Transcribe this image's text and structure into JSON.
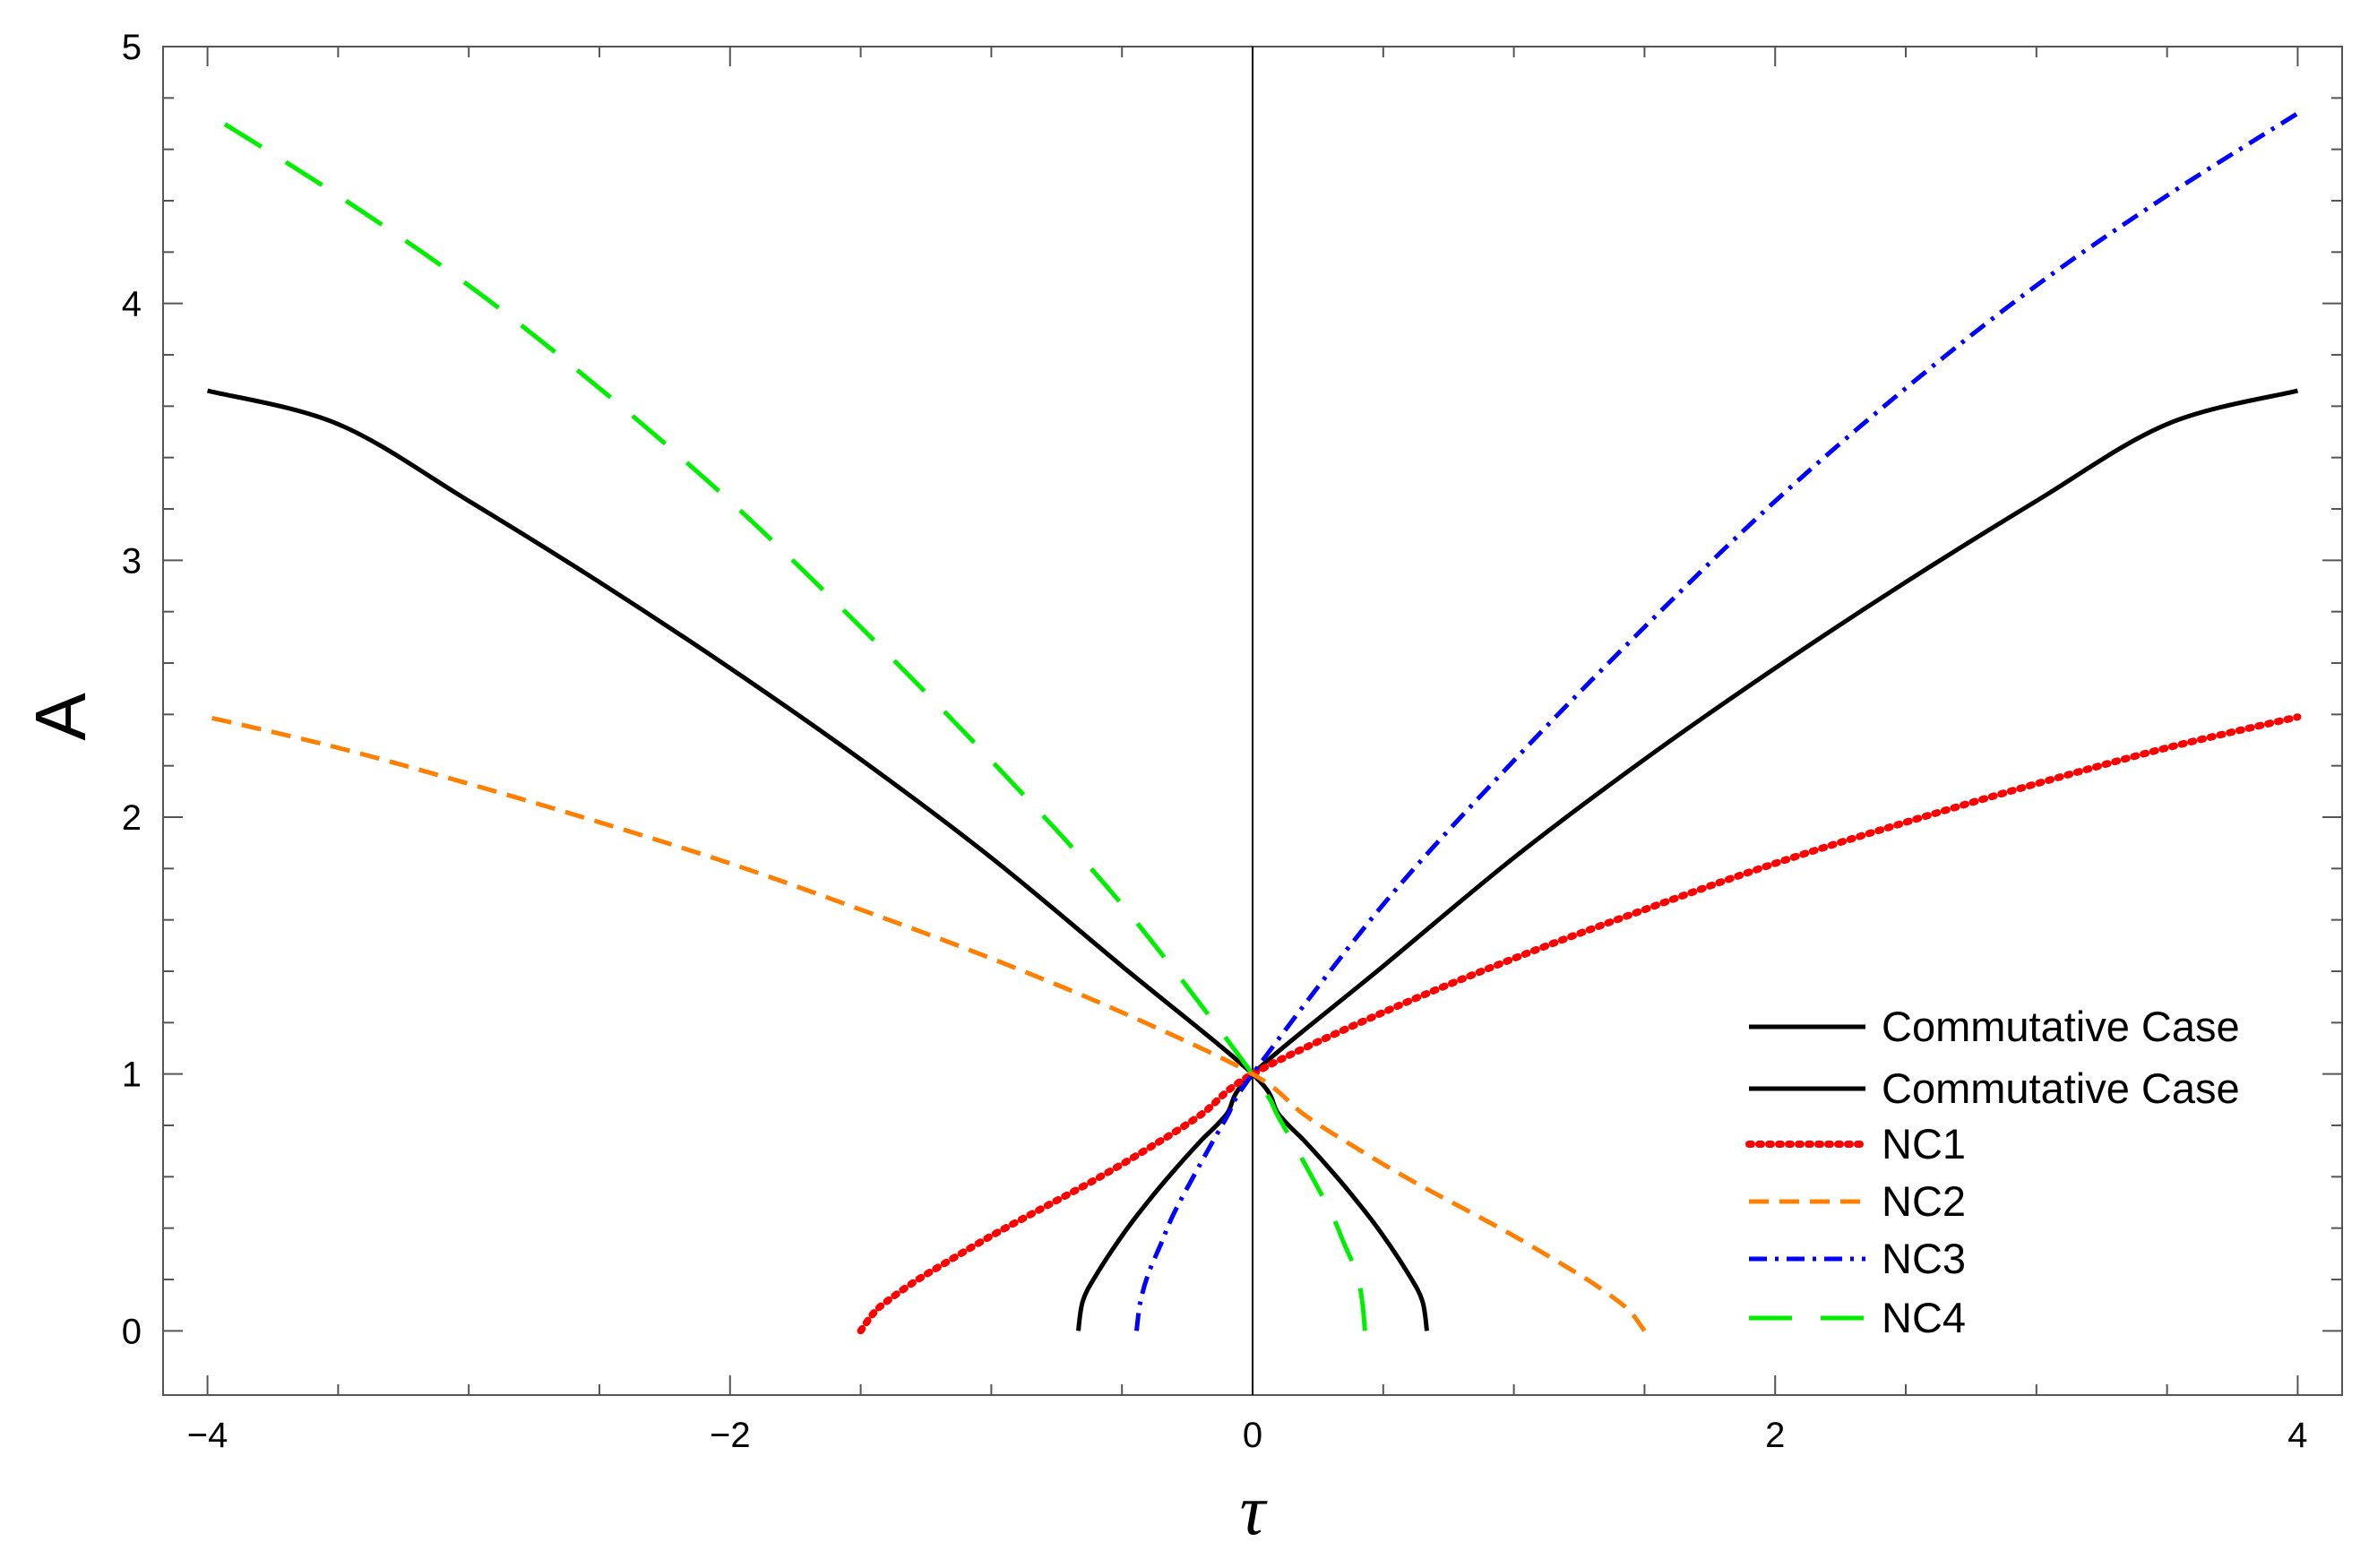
{
  "chart_data": {
    "type": "line",
    "xlabel": "τ",
    "ylabel": "A",
    "xlim": [
      -4.17,
      4.17
    ],
    "ylim": [
      -0.25,
      5
    ],
    "x_ticks": [
      -4,
      -2,
      0,
      2,
      4
    ],
    "x_tick_labels": [
      "−4",
      "−2",
      "0",
      "2",
      "4"
    ],
    "y_ticks": [
      0,
      1,
      2,
      3,
      4,
      5
    ],
    "y_tick_labels": [
      "0",
      "1",
      "2",
      "3",
      "4",
      "5"
    ],
    "grid": false,
    "legend_position": "bottom-right",
    "series": [
      {
        "name": "Commutative Case",
        "color": "#000000",
        "dash": "solid",
        "width": 5,
        "x": [
          -0.667,
          -0.65,
          -0.6,
          -0.5,
          -0.4,
          -0.3,
          -0.2,
          -0.1,
          0,
          0.5,
          1,
          1.5,
          2,
          2.5,
          3,
          3.5,
          4
        ],
        "y": [
          0,
          0.116,
          0.215,
          0.37,
          0.504,
          0.625,
          0.738,
          0.843,
          1,
          1.42,
          1.842,
          2.225,
          2.58,
          2.915,
          3.231,
          3.53,
          3.66
        ]
      },
      {
        "name": "Commutative Case",
        "color": "#000000",
        "dash": "solid",
        "width": 5,
        "x": [
          0.667,
          0.65,
          0.6,
          0.5,
          0.4,
          0.3,
          0.2,
          0.1,
          0,
          -0.5,
          -1,
          -1.5,
          -2,
          -2.5,
          -3,
          -3.5,
          -4
        ],
        "y": [
          0,
          0.116,
          0.215,
          0.37,
          0.504,
          0.625,
          0.738,
          0.843,
          1,
          1.42,
          1.842,
          2.225,
          2.58,
          2.915,
          3.231,
          3.53,
          3.66
        ]
      },
      {
        "name": "NC1",
        "color": "#ff0000",
        "dash": "dotted",
        "width": 8,
        "x": [
          -1.5,
          -1.45,
          -1.4,
          -1.3,
          -1.2,
          -1.0,
          -0.8,
          -0.6,
          -0.4,
          -0.2,
          0,
          0.5,
          1,
          1.5,
          2,
          2.5,
          3,
          3.5,
          4
        ],
        "y": [
          0,
          0.07,
          0.115,
          0.187,
          0.25,
          0.37,
          0.48,
          0.59,
          0.71,
          0.84,
          1,
          1.24,
          1.45,
          1.64,
          1.82,
          1.98,
          2.13,
          2.27,
          2.39
        ]
      },
      {
        "name": "NC2",
        "color": "#ff8000",
        "dash": "dashed",
        "width": 5,
        "x": [
          1.5,
          1.45,
          1.4,
          1.3,
          1.2,
          1.0,
          0.8,
          0.6,
          0.4,
          0.2,
          0,
          -0.5,
          -1,
          -1.5,
          -2,
          -2.5,
          -3,
          -3.5,
          -4
        ],
        "y": [
          0,
          0.07,
          0.115,
          0.187,
          0.25,
          0.37,
          0.48,
          0.59,
          0.71,
          0.84,
          1,
          1.24,
          1.45,
          1.64,
          1.82,
          1.98,
          2.13,
          2.27,
          2.39
        ]
      },
      {
        "name": "NC3",
        "color": "#0000ff",
        "dash": "dashdot",
        "width": 5,
        "x": [
          -0.444,
          -0.43,
          -0.4,
          -0.35,
          -0.3,
          -0.2,
          -0.1,
          0,
          0.5,
          1,
          1.5,
          2,
          2.5,
          3,
          3.5,
          4
        ],
        "y": [
          0,
          0.11,
          0.22,
          0.34,
          0.46,
          0.65,
          0.83,
          1,
          1.66,
          2.22,
          2.74,
          3.23,
          3.67,
          4.07,
          4.42,
          4.74
        ]
      },
      {
        "name": "NC4",
        "color": "#00ee00",
        "dash": "longdash",
        "width": 5,
        "x": [
          0.43,
          0.42,
          0.4,
          0.35,
          0.3,
          0.2,
          0.1,
          0,
          -0.5,
          -1,
          -1.5,
          -2,
          -2.5,
          -3,
          -3.5,
          -4
        ],
        "y": [
          0,
          0.11,
          0.22,
          0.34,
          0.46,
          0.65,
          0.83,
          1,
          1.66,
          2.22,
          2.74,
          3.23,
          3.67,
          4.07,
          4.42,
          4.74
        ]
      }
    ]
  }
}
